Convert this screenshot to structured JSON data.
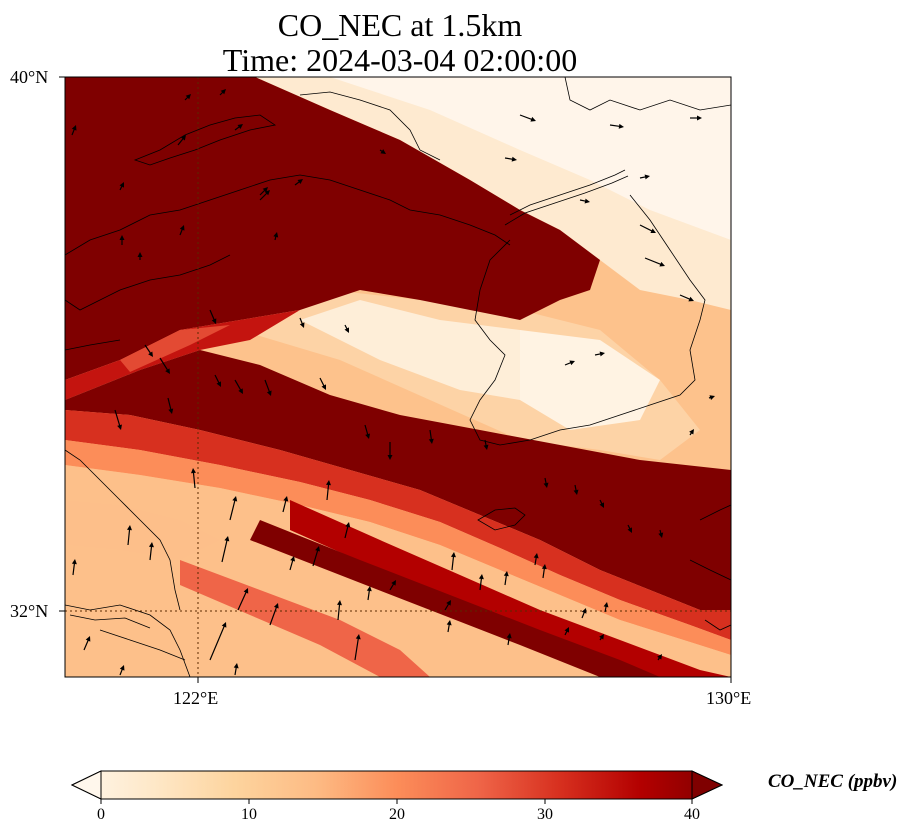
{
  "title_line1": "CO_NEC at 1.5km",
  "title_line2": "Time: 2024-03-04 02:00:00",
  "map": {
    "lon_range": [
      119.5,
      130
    ],
    "lat_range": [
      31,
      40
    ],
    "lon_ticks": [
      {
        "value": 122,
        "label": "122°E"
      },
      {
        "value": 130,
        "label": "130°E"
      }
    ],
    "lat_ticks": [
      {
        "value": 40,
        "label": "40°N"
      },
      {
        "value": 32,
        "label": "32°N"
      }
    ],
    "gridlines": "dotted at 122°E and 32°N",
    "wind_vectors": "black arrows, mostly northward south of 36°N, eastward over Korea"
  },
  "colorbar": {
    "label": "CO_NEC (ppbv)",
    "ticks": [
      "0",
      "10",
      "20",
      "30",
      "40"
    ],
    "min": 0,
    "max": 40,
    "extend": "both",
    "colormap": [
      "#fff7ec",
      "#fee8c8",
      "#fdd49e",
      "#fdbb84",
      "#fc8d59",
      "#ef6548",
      "#d7301f",
      "#b30000",
      "#7f0000"
    ]
  }
}
